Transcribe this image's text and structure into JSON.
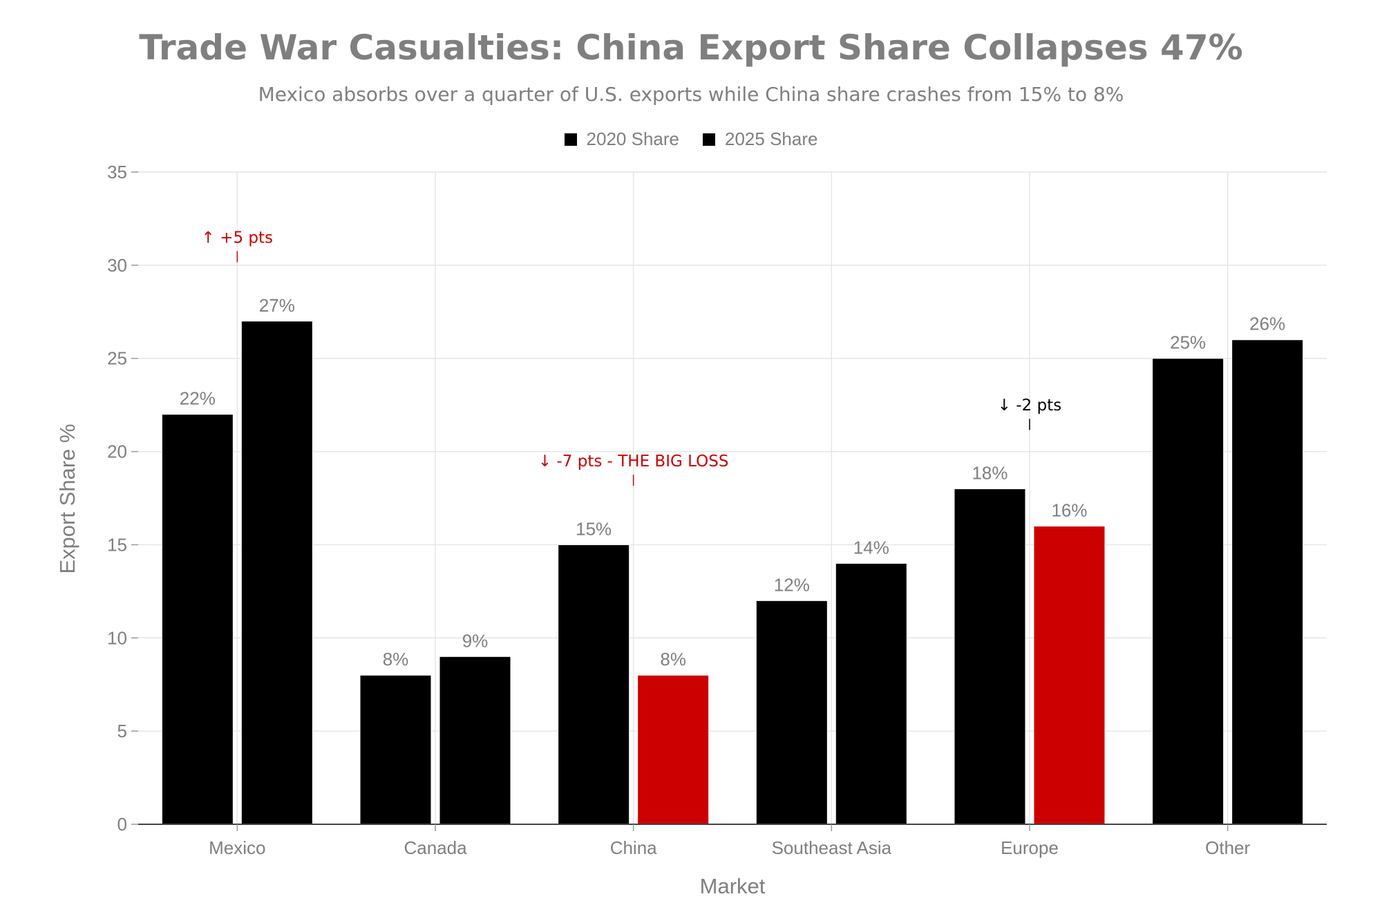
{
  "title": "Trade War Casualties: China Export Share Collapses 47%",
  "subtitle": "Mexico absorbs over a quarter of U.S. exports while China share crashes from 15% to 8%",
  "legend": [
    {
      "label": "2020 Share",
      "color": "#000000"
    },
    {
      "label": "2025 Share",
      "color": "#000000"
    }
  ],
  "chart_data": {
    "type": "bar",
    "categories": [
      "Mexico",
      "Canada",
      "China",
      "Southeast Asia",
      "Europe",
      "Other"
    ],
    "series": [
      {
        "name": "2020 Share",
        "values": [
          22,
          8,
          15,
          12,
          18,
          25
        ],
        "labels": [
          "22%",
          "8%",
          "15%",
          "12%",
          "18%",
          "25%"
        ],
        "colors": [
          "#000000",
          "#000000",
          "#000000",
          "#000000",
          "#000000",
          "#000000"
        ]
      },
      {
        "name": "2025 Share",
        "values": [
          27,
          9,
          8,
          14,
          16,
          26
        ],
        "labels": [
          "27%",
          "9%",
          "8%",
          "14%",
          "16%",
          "26%"
        ],
        "colors": [
          "#000000",
          "#000000",
          "#cc0000",
          "#000000",
          "#cc0000",
          "#000000"
        ]
      }
    ],
    "xlabel": "Market",
    "ylabel": "Export Share %",
    "ylim": [
      0,
      35
    ],
    "yticks": [
      0,
      5,
      10,
      15,
      20,
      25,
      30,
      35
    ],
    "grid": true,
    "legend_position": "top-center",
    "annotations": [
      {
        "category": "Mexico",
        "text": "↑ +5 pts",
        "y": 31.2,
        "color": "#cc0000"
      },
      {
        "category": "China",
        "text": "↓ -7 pts - THE BIG LOSS",
        "y": 19.2,
        "color": "#cc0000"
      },
      {
        "category": "Europe",
        "text": "↓ -2 pts",
        "y": 22.2,
        "color": "#000000"
      }
    ]
  }
}
